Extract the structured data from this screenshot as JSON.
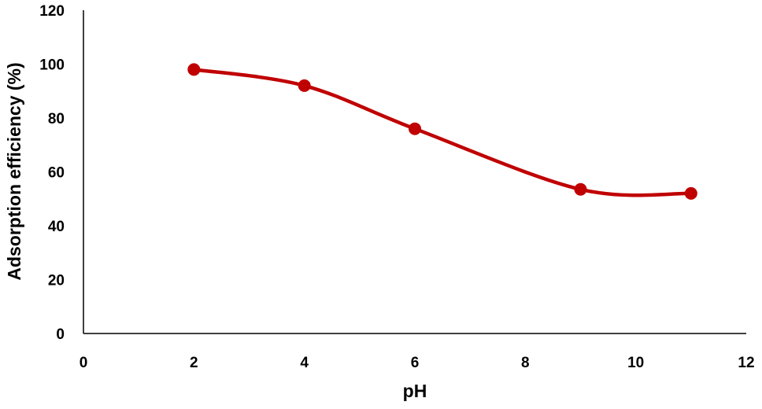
{
  "chart_data": {
    "type": "line",
    "title": "",
    "xlabel": "pH",
    "ylabel": "Adsorption efficiency (%)",
    "xlim": [
      0,
      12
    ],
    "ylim": [
      0,
      120
    ],
    "xticks": [
      0,
      2,
      4,
      6,
      8,
      10,
      12
    ],
    "yticks": [
      0,
      20,
      40,
      60,
      80,
      100,
      120
    ],
    "grid": false,
    "legend": "none",
    "smooth": true,
    "series": [
      {
        "color": "#c00000",
        "x": [
          2,
          4,
          6,
          9,
          11
        ],
        "y": [
          98,
          92,
          76,
          53.5,
          52
        ]
      }
    ]
  }
}
